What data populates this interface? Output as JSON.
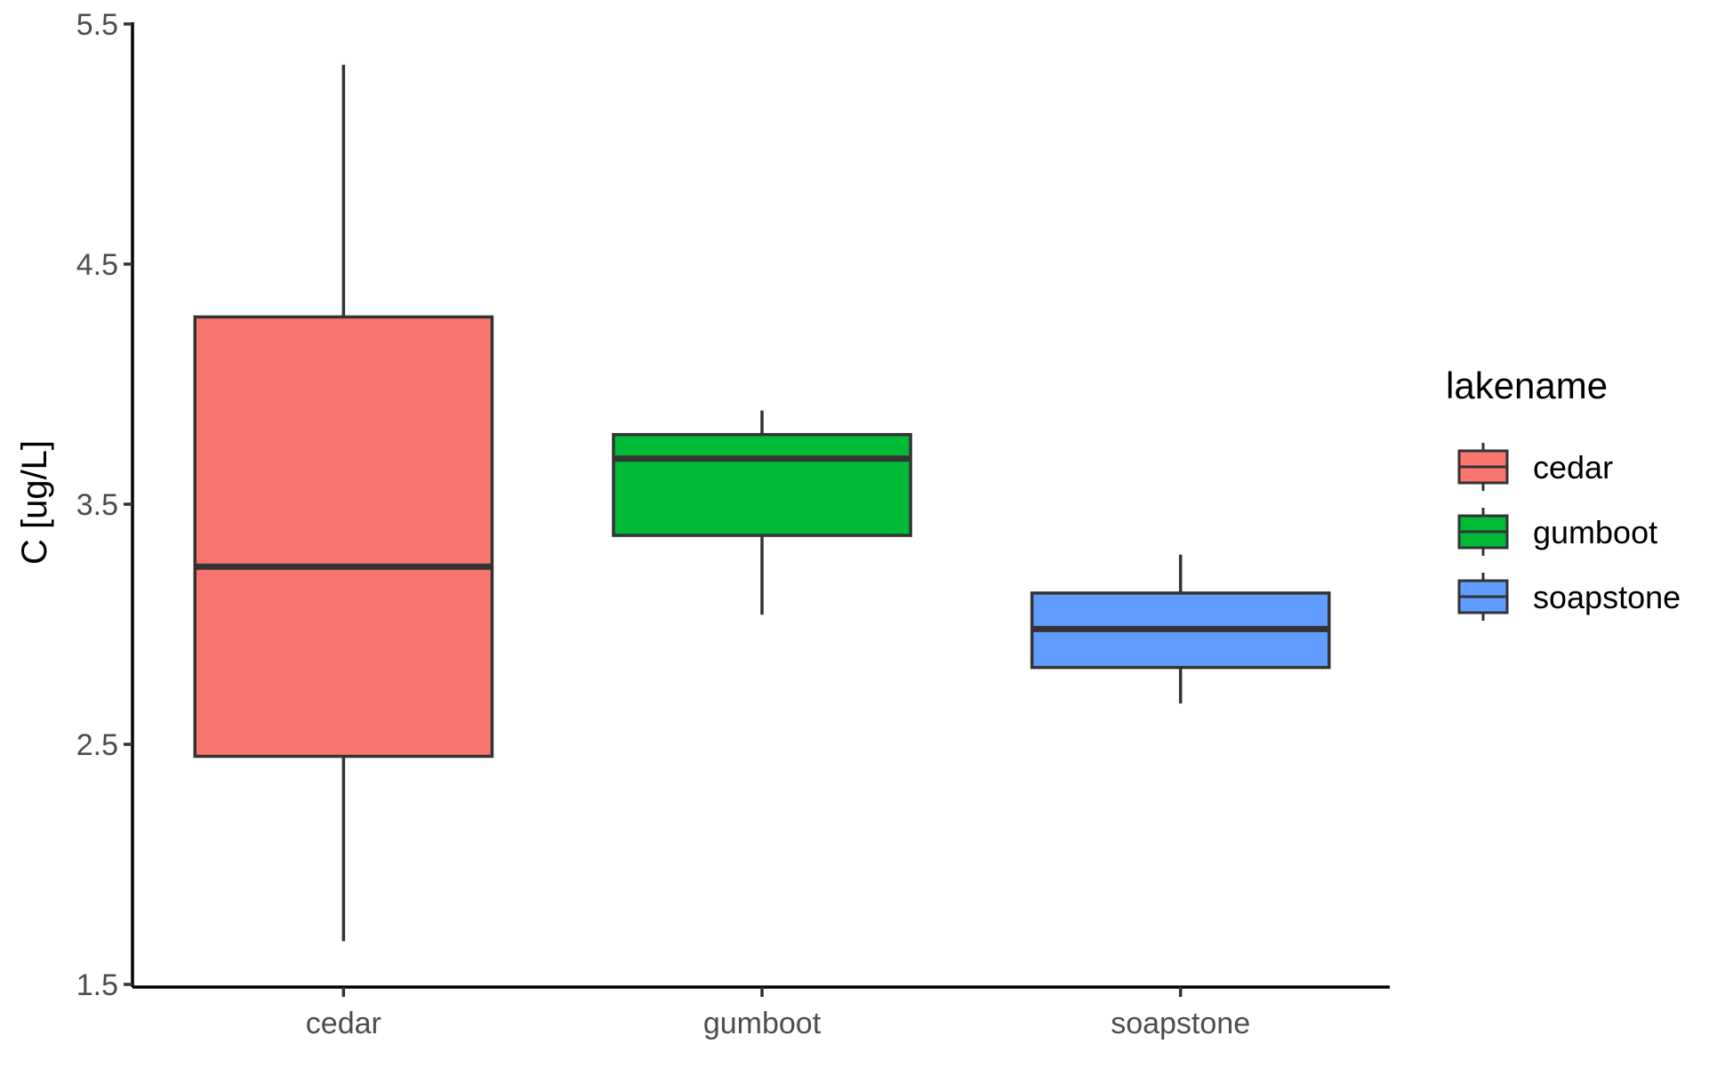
{
  "chart_data": {
    "type": "boxplot",
    "title": "",
    "xlabel": "",
    "ylabel": "C [ug/L]",
    "ylim": [
      1.5,
      5.5
    ],
    "yticks": [
      "1.5",
      "2.5",
      "3.5",
      "4.5",
      "5.5"
    ],
    "categories": [
      "cedar",
      "gumboot",
      "soapstone"
    ],
    "boxes": [
      {
        "name": "cedar",
        "whisker_low": 1.68,
        "q1": 2.45,
        "median": 3.24,
        "q3": 4.28,
        "whisker_high": 5.33,
        "color": "#F8766D"
      },
      {
        "name": "gumboot",
        "whisker_low": 3.04,
        "q1": 3.37,
        "median": 3.69,
        "q3": 3.79,
        "whisker_high": 3.89,
        "color": "#00BA38"
      },
      {
        "name": "soapstone",
        "whisker_low": 2.67,
        "q1": 2.82,
        "median": 2.98,
        "q3": 3.13,
        "whisker_high": 3.29,
        "color": "#619CFF"
      }
    ],
    "legend": {
      "title": "lakename",
      "placement": "right",
      "items": [
        "cedar",
        "gumboot",
        "soapstone"
      ]
    },
    "grid": false
  }
}
